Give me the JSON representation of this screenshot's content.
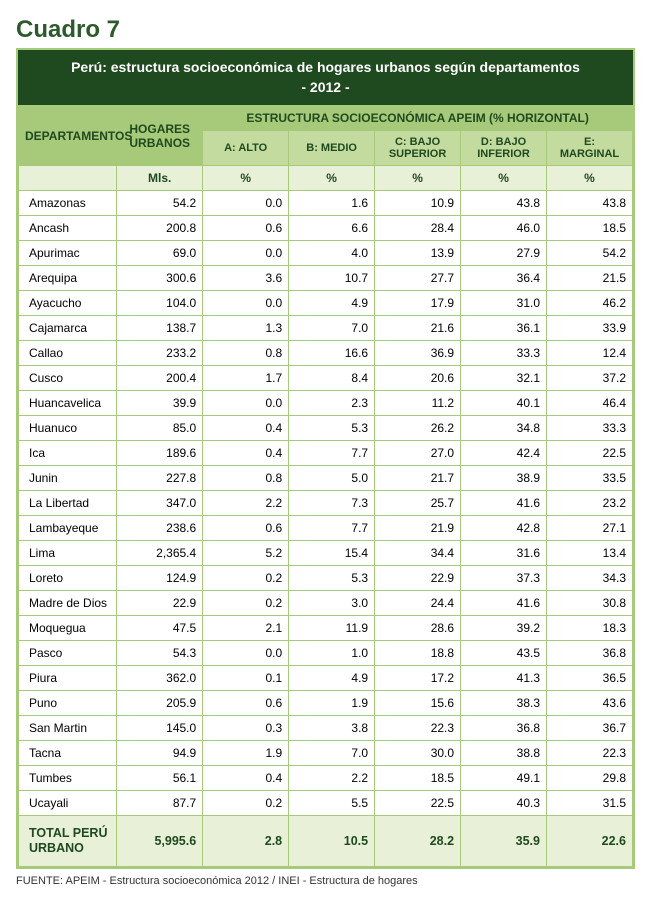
{
  "title": "Cuadro 7",
  "banner_line1": "Perú: estructura socioeconómica de hogares urbanos según departamentos",
  "banner_line2": "- 2012 -",
  "headers": {
    "dept": "DEPARTAMENTOS",
    "hogares": "HOGARES URBANOS",
    "structure": "ESTRUCTURA SOCIOECONÓMICA APEIM (% HORIZONTAL)",
    "a": "A: ALTO",
    "b": "B: MEDIO",
    "c": "C: BAJO SUPERIOR",
    "d": "D: BAJO INFERIOR",
    "e": "E: MARGINAL"
  },
  "units": {
    "hogares": "Mls.",
    "pct": "%"
  },
  "rows": [
    {
      "dept": "Amazonas",
      "hog": "54.2",
      "a": "0.0",
      "b": "1.6",
      "c": "10.9",
      "d": "43.8",
      "e": "43.8"
    },
    {
      "dept": "Ancash",
      "hog": "200.8",
      "a": "0.6",
      "b": "6.6",
      "c": "28.4",
      "d": "46.0",
      "e": "18.5"
    },
    {
      "dept": "Apurimac",
      "hog": "69.0",
      "a": "0.0",
      "b": "4.0",
      "c": "13.9",
      "d": "27.9",
      "e": "54.2"
    },
    {
      "dept": "Arequipa",
      "hog": "300.6",
      "a": "3.6",
      "b": "10.7",
      "c": "27.7",
      "d": "36.4",
      "e": "21.5"
    },
    {
      "dept": "Ayacucho",
      "hog": "104.0",
      "a": "0.0",
      "b": "4.9",
      "c": "17.9",
      "d": "31.0",
      "e": "46.2"
    },
    {
      "dept": "Cajamarca",
      "hog": "138.7",
      "a": "1.3",
      "b": "7.0",
      "c": "21.6",
      "d": "36.1",
      "e": "33.9"
    },
    {
      "dept": "Callao",
      "hog": "233.2",
      "a": "0.8",
      "b": "16.6",
      "c": "36.9",
      "d": "33.3",
      "e": "12.4"
    },
    {
      "dept": "Cusco",
      "hog": "200.4",
      "a": "1.7",
      "b": "8.4",
      "c": "20.6",
      "d": "32.1",
      "e": "37.2"
    },
    {
      "dept": "Huancavelica",
      "hog": "39.9",
      "a": "0.0",
      "b": "2.3",
      "c": "11.2",
      "d": "40.1",
      "e": "46.4"
    },
    {
      "dept": "Huanuco",
      "hog": "85.0",
      "a": "0.4",
      "b": "5.3",
      "c": "26.2",
      "d": "34.8",
      "e": "33.3"
    },
    {
      "dept": "Ica",
      "hog": "189.6",
      "a": "0.4",
      "b": "7.7",
      "c": "27.0",
      "d": "42.4",
      "e": "22.5"
    },
    {
      "dept": "Junin",
      "hog": "227.8",
      "a": "0.8",
      "b": "5.0",
      "c": "21.7",
      "d": "38.9",
      "e": "33.5"
    },
    {
      "dept": "La Libertad",
      "hog": "347.0",
      "a": "2.2",
      "b": "7.3",
      "c": "25.7",
      "d": "41.6",
      "e": "23.2"
    },
    {
      "dept": "Lambayeque",
      "hog": "238.6",
      "a": "0.6",
      "b": "7.7",
      "c": "21.9",
      "d": "42.8",
      "e": "27.1"
    },
    {
      "dept": "Lima",
      "hog": "2,365.4",
      "a": "5.2",
      "b": "15.4",
      "c": "34.4",
      "d": "31.6",
      "e": "13.4"
    },
    {
      "dept": "Loreto",
      "hog": "124.9",
      "a": "0.2",
      "b": "5.3",
      "c": "22.9",
      "d": "37.3",
      "e": "34.3"
    },
    {
      "dept": "Madre de Dios",
      "hog": "22.9",
      "a": "0.2",
      "b": "3.0",
      "c": "24.4",
      "d": "41.6",
      "e": "30.8"
    },
    {
      "dept": "Moquegua",
      "hog": "47.5",
      "a": "2.1",
      "b": "11.9",
      "c": "28.6",
      "d": "39.2",
      "e": "18.3"
    },
    {
      "dept": "Pasco",
      "hog": "54.3",
      "a": "0.0",
      "b": "1.0",
      "c": "18.8",
      "d": "43.5",
      "e": "36.8"
    },
    {
      "dept": "Piura",
      "hog": "362.0",
      "a": "0.1",
      "b": "4.9",
      "c": "17.2",
      "d": "41.3",
      "e": "36.5"
    },
    {
      "dept": "Puno",
      "hog": "205.9",
      "a": "0.6",
      "b": "1.9",
      "c": "15.6",
      "d": "38.3",
      "e": "43.6"
    },
    {
      "dept": "San Martin",
      "hog": "145.0",
      "a": "0.3",
      "b": "3.8",
      "c": "22.3",
      "d": "36.8",
      "e": "36.7"
    },
    {
      "dept": "Tacna",
      "hog": "94.9",
      "a": "1.9",
      "b": "7.0",
      "c": "30.0",
      "d": "38.8",
      "e": "22.3"
    },
    {
      "dept": "Tumbes",
      "hog": "56.1",
      "a": "0.4",
      "b": "2.2",
      "c": "18.5",
      "d": "49.1",
      "e": "29.8"
    },
    {
      "dept": "Ucayali",
      "hog": "87.7",
      "a": "0.2",
      "b": "5.5",
      "c": "22.5",
      "d": "40.3",
      "e": "31.5"
    }
  ],
  "total": {
    "dept": "TOTAL PERÚ URBANO",
    "hog": "5,995.6",
    "a": "2.8",
    "b": "10.5",
    "c": "28.2",
    "d": "35.9",
    "e": "22.6"
  },
  "source": "FUENTE: APEIM - Estructura socioeconómica 2012   /   INEI - Estructura de hogares",
  "colors": {
    "dark_green": "#1f4a1f",
    "mid_green": "#a7c97a",
    "light_green": "#c3db9f",
    "pale_green": "#e8f0d8",
    "white": "#ffffff"
  }
}
